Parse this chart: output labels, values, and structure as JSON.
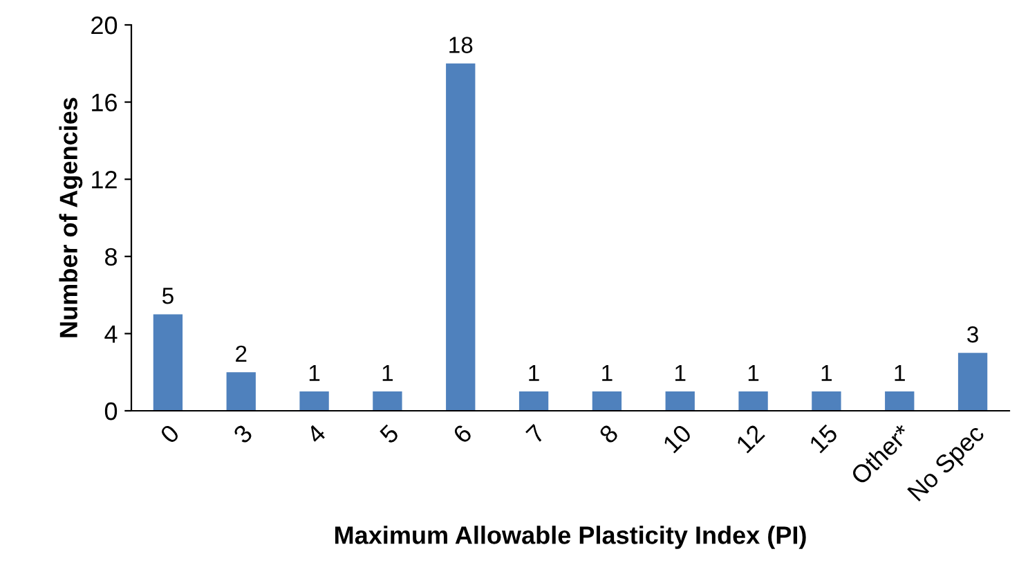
{
  "chart_data": {
    "type": "bar",
    "xlabel": "Maximum Allowable Plasticity Index (PI)",
    "ylabel": "Number of Agencies",
    "categories": [
      "0",
      "3",
      "4",
      "5",
      "6",
      "7",
      "8",
      "10",
      "12",
      "15",
      "Other*",
      "No Spec"
    ],
    "values": [
      5,
      2,
      1,
      1,
      18,
      1,
      1,
      1,
      1,
      1,
      1,
      3
    ],
    "color": "#4f81bd",
    "ylim": [
      0,
      20
    ],
    "yticks": [
      0,
      4,
      8,
      12,
      16,
      20
    ],
    "grid": false,
    "data_labels": true,
    "legend": false
  }
}
